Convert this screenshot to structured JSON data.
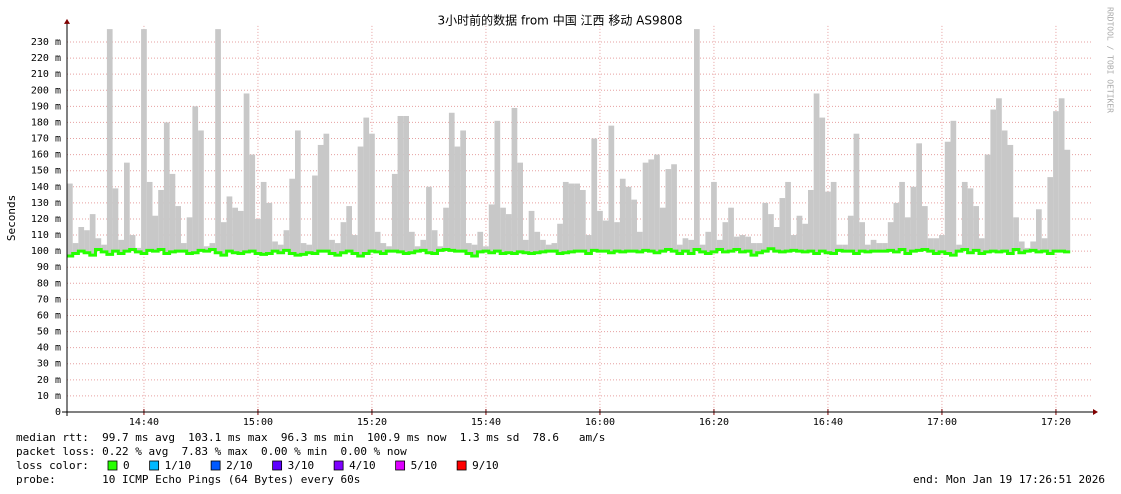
{
  "chart_data": {
    "type": "smokeping",
    "title": "3小时前的数据 from 中国 江西 移动 AS9808",
    "y_label": "Seconds",
    "watermark": "RRDTOOL / TOBI OETIKER",
    "xlim": [
      866.5,
      1046.5
    ],
    "xticks": [
      {
        "value": 880,
        "label": "14:40"
      },
      {
        "value": 900,
        "label": "15:00"
      },
      {
        "value": 920,
        "label": "15:20"
      },
      {
        "value": 940,
        "label": "15:40"
      },
      {
        "value": 960,
        "label": "16:00"
      },
      {
        "value": 980,
        "label": "16:20"
      },
      {
        "value": 1000,
        "label": "16:40"
      },
      {
        "value": 1020,
        "label": "17:00"
      },
      {
        "value": 1040,
        "label": "17:20"
      }
    ],
    "ylim": [
      0,
      0.24
    ],
    "yticks": [
      0,
      {
        "value": 0.01,
        "label": "10 m"
      },
      {
        "value": 0.02,
        "label": "20 m"
      },
      {
        "value": 0.03,
        "label": "30 m"
      },
      {
        "value": 0.04,
        "label": "40 m"
      },
      {
        "value": 0.05,
        "label": "50 m"
      },
      {
        "value": 0.06,
        "label": "60 m"
      },
      {
        "value": 0.07,
        "label": "70 m"
      },
      {
        "value": 0.08,
        "label": "80 m"
      },
      {
        "value": 0.09,
        "label": "90 m"
      },
      {
        "value": 0.1,
        "label": "100 m"
      },
      {
        "value": 0.11,
        "label": "110 m"
      },
      {
        "value": 0.12,
        "label": "120 m"
      },
      {
        "value": 0.13,
        "label": "130 m"
      },
      {
        "value": 0.14,
        "label": "140 m"
      },
      {
        "value": 0.15,
        "label": "150 m"
      },
      {
        "value": 0.16,
        "label": "160 m"
      },
      {
        "value": 0.17,
        "label": "170 m"
      },
      {
        "value": 0.18,
        "label": "180 m"
      },
      {
        "value": 0.19,
        "label": "190 m"
      },
      {
        "value": 0.2,
        "label": "200 m"
      },
      {
        "value": 0.21,
        "label": "210 m"
      },
      {
        "value": 0.22,
        "label": "220 m"
      },
      {
        "value": 0.23,
        "label": "230 m"
      }
    ],
    "grid": true,
    "colors": {
      "smoke": "#c8c8c8",
      "median": "#26ff00",
      "grid": "#e6a0a0",
      "axis": "#800000"
    },
    "x": [
      867,
      868,
      869,
      870,
      871,
      872,
      873,
      874,
      875,
      876,
      877,
      878,
      879,
      880,
      881,
      882,
      883,
      884,
      885,
      886,
      887,
      888,
      889,
      890,
      891,
      892,
      893,
      894,
      895,
      896,
      897,
      898,
      899,
      900,
      901,
      902,
      903,
      904,
      905,
      906,
      907,
      908,
      909,
      910,
      911,
      912,
      913,
      914,
      915,
      916,
      917,
      918,
      919,
      920,
      921,
      922,
      923,
      924,
      925,
      926,
      927,
      928,
      929,
      930,
      931,
      932,
      933,
      934,
      935,
      936,
      937,
      938,
      939,
      940,
      941,
      942,
      943,
      944,
      945,
      946,
      947,
      948,
      949,
      950,
      951,
      952,
      953,
      954,
      955,
      956,
      957,
      958,
      959,
      960,
      961,
      962,
      963,
      964,
      965,
      966,
      967,
      968,
      969,
      970,
      971,
      972,
      973,
      974,
      975,
      976,
      977,
      978,
      979,
      980,
      981,
      982,
      983,
      984,
      985,
      986,
      987,
      988,
      989,
      990,
      991,
      992,
      993,
      994,
      995,
      996,
      997,
      998,
      999,
      1000,
      1001,
      1002,
      1003,
      1004,
      1005,
      1006,
      1007,
      1008,
      1009,
      1010,
      1011,
      1012,
      1013,
      1014,
      1015,
      1016,
      1017,
      1018,
      1019,
      1020,
      1021,
      1022,
      1023,
      1024,
      1025,
      1026,
      1027,
      1028,
      1029,
      1030,
      1031,
      1032,
      1033,
      1034,
      1035,
      1036,
      1037,
      1038,
      1039,
      1040,
      1041,
      1042
    ],
    "max_rtt": [
      0.142,
      0.105,
      0.115,
      0.113,
      0.123,
      0.108,
      0.104,
      0.238,
      0.139,
      0.107,
      0.155,
      0.11,
      0.102,
      0.238,
      0.143,
      0.122,
      0.138,
      0.18,
      0.148,
      0.128,
      0.105,
      0.121,
      0.19,
      0.175,
      0.103,
      0.105,
      0.238,
      0.118,
      0.134,
      0.127,
      0.125,
      0.198,
      0.16,
      0.12,
      0.143,
      0.13,
      0.106,
      0.104,
      0.113,
      0.145,
      0.175,
      0.105,
      0.104,
      0.147,
      0.166,
      0.173,
      0.107,
      0.105,
      0.118,
      0.128,
      0.11,
      0.165,
      0.183,
      0.173,
      0.112,
      0.105,
      0.103,
      0.148,
      0.184,
      0.184,
      0.112,
      0.103,
      0.107,
      0.14,
      0.113,
      0.103,
      0.127,
      0.186,
      0.165,
      0.175,
      0.105,
      0.104,
      0.112,
      0.103,
      0.129,
      0.181,
      0.127,
      0.123,
      0.189,
      0.155,
      0.107,
      0.125,
      0.112,
      0.107,
      0.104,
      0.105,
      0.117,
      0.143,
      0.142,
      0.142,
      0.138,
      0.11,
      0.17,
      0.125,
      0.119,
      0.178,
      0.118,
      0.145,
      0.14,
      0.132,
      0.112,
      0.155,
      0.157,
      0.16,
      0.127,
      0.151,
      0.154,
      0.104,
      0.108,
      0.107,
      0.238,
      0.104,
      0.112,
      0.143,
      0.107,
      0.118,
      0.127,
      0.109,
      0.11,
      0.109,
      0.105,
      0.105,
      0.13,
      0.123,
      0.115,
      0.133,
      0.143,
      0.11,
      0.122,
      0.117,
      0.138,
      0.198,
      0.183,
      0.137,
      0.143,
      0.104,
      0.104,
      0.122,
      0.173,
      0.118,
      0.104,
      0.107,
      0.105,
      0.105,
      0.118,
      0.13,
      0.143,
      0.121,
      0.14,
      0.167,
      0.128,
      0.108,
      0.108,
      0.11,
      0.168,
      0.181,
      0.104,
      0.143,
      0.139,
      0.128,
      0.108,
      0.16,
      0.188,
      0.195,
      0.175,
      0.166,
      0.121,
      0.106,
      0.102,
      0.106,
      0.126,
      0.108,
      0.146,
      0.187,
      0.195,
      0.163
    ],
    "median_rtt": [
      0.097,
      0.0985,
      0.1,
      0.099,
      0.0975,
      0.101,
      0.0995,
      0.098,
      0.1,
      0.0985,
      0.1,
      0.101,
      0.0995,
      0.0985,
      0.1005,
      0.1,
      0.101,
      0.0985,
      0.0995,
      0.1,
      0.1,
      0.0985,
      0.099,
      0.1005,
      0.1,
      0.101,
      0.099,
      0.0975,
      0.1,
      0.099,
      0.0985,
      0.0995,
      0.1,
      0.0985,
      0.098,
      0.0985,
      0.1,
      0.099,
      0.1005,
      0.0985,
      0.0975,
      0.098,
      0.099,
      0.0985,
      0.1,
      0.1,
      0.0985,
      0.0975,
      0.099,
      0.1,
      0.0985,
      0.097,
      0.0985,
      0.1,
      0.0995,
      0.0985,
      0.1,
      0.1,
      0.0995,
      0.0985,
      0.099,
      0.1,
      0.1005,
      0.099,
      0.0985,
      0.1005,
      0.101,
      0.1005,
      0.1,
      0.1,
      0.0985,
      0.097,
      0.0995,
      0.1,
      0.099,
      0.1,
      0.0985,
      0.099,
      0.0985,
      0.0995,
      0.099,
      0.0985,
      0.099,
      0.0995,
      0.1,
      0.1,
      0.0985,
      0.099,
      0.0995,
      0.1,
      0.1,
      0.0985,
      0.1005,
      0.1,
      0.1,
      0.099,
      0.1,
      0.0995,
      0.1,
      0.1,
      0.0995,
      0.1005,
      0.1,
      0.099,
      0.1,
      0.101,
      0.1,
      0.0985,
      0.1,
      0.0985,
      0.101,
      0.0995,
      0.0985,
      0.0995,
      0.101,
      0.0995,
      0.1,
      0.101,
      0.0995,
      0.1,
      0.0975,
      0.099,
      0.1,
      0.1015,
      0.1,
      0.0995,
      0.1,
      0.1005,
      0.1,
      0.0995,
      0.1,
      0.0985,
      0.1,
      0.099,
      0.0985,
      0.1005,
      0.1,
      0.1,
      0.0985,
      0.1,
      0.0995,
      0.1,
      0.1,
      0.1,
      0.1005,
      0.0995,
      0.101,
      0.0985,
      0.1,
      0.1005,
      0.101,
      0.1,
      0.0985,
      0.0995,
      0.0985,
      0.0975,
      0.1,
      0.101,
      0.099,
      0.1005,
      0.0985,
      0.0995,
      0.1,
      0.0995,
      0.1,
      0.0985,
      0.101,
      0.099,
      0.1,
      0.1005,
      0.0995,
      0.1,
      0.0985,
      0.1,
      0.1,
      0.0995
    ],
    "stats": {
      "median_rtt": "median rtt:  99.7 ms avg  103.1 ms max  96.3 ms min  100.9 ms now  1.3 ms sd  78.6   am/s",
      "packet_loss": "packet loss: 0.22 % avg  7.83 % max  0.00 % min  0.00 % now",
      "probe": "probe:       10 ICMP Echo Pings (64 Bytes) every 60s",
      "end": "end: Mon Jan 19 17:26:51 2026"
    },
    "legend": {
      "label": "loss color:",
      "items": [
        {
          "label": "0",
          "color": "#26ff00"
        },
        {
          "label": "1/10",
          "color": "#00b8ff"
        },
        {
          "label": "2/10",
          "color": "#0059ff"
        },
        {
          "label": "3/10",
          "color": "#5e00ff"
        },
        {
          "label": "4/10",
          "color": "#7e00ff"
        },
        {
          "label": "5/10",
          "color": "#dd00ff"
        },
        {
          "label": "9/10",
          "color": "#ff0000"
        }
      ]
    }
  }
}
